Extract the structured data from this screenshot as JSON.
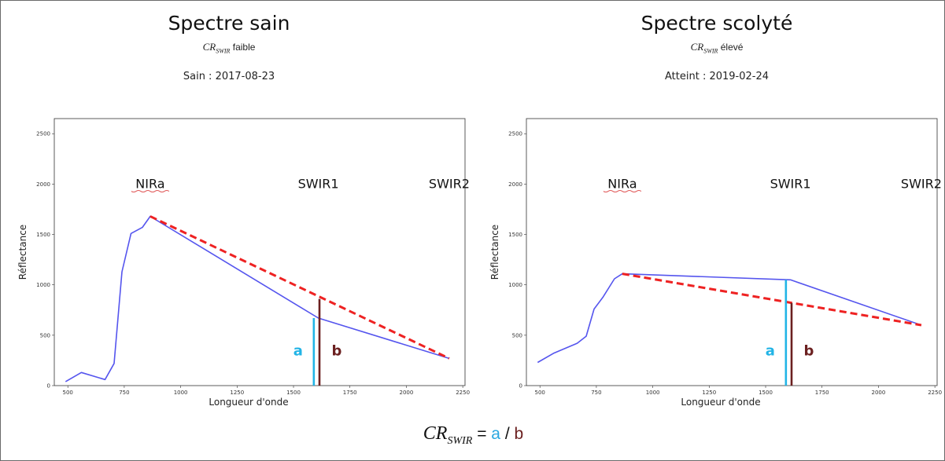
{
  "colors": {
    "spectrum": "#5555ee",
    "hull": "#ee2222",
    "segment_a": "#22b4e6",
    "segment_b": "#6b2020",
    "axis": "#333333",
    "band_underline": "#e05858"
  },
  "formula": {
    "cr_main": "CR",
    "cr_sub": "SWIR",
    "rest": " = ",
    "a": "a",
    "slash": " / ",
    "b": "b"
  },
  "chart_data": [
    {
      "type": "line",
      "heading": "Spectre sain",
      "cr_main": "CR",
      "cr_sub": "SWIR",
      "cr_word": " faible",
      "title": "Sain : 2017-08-23",
      "xlabel": "Longueur d'onde",
      "ylabel": "Réflectance",
      "xlim": [
        440,
        2260
      ],
      "ylim": [
        0,
        2650
      ],
      "xticks": [
        500,
        750,
        1000,
        1250,
        1500,
        1750,
        2000,
        2250
      ],
      "yticks": [
        0,
        500,
        1000,
        1500,
        2000,
        2500
      ],
      "series": [
        {
          "x": [
            490,
            560,
            665,
            705,
            740,
            780,
            830,
            865,
            1610,
            2190
          ],
          "y": [
            40,
            130,
            60,
            220,
            1130,
            1510,
            1570,
            1680,
            670,
            270
          ]
        },
        {
          "x": [
            865,
            2190
          ],
          "y": [
            1680,
            270
          ]
        }
      ],
      "bands": [
        {
          "label": "NIRa",
          "x": 865,
          "y": 1960,
          "underline": true
        },
        {
          "label": "SWIR1",
          "x": 1610,
          "y": 1960,
          "underline": false
        },
        {
          "label": "SWIR2",
          "x": 2190,
          "y": 1960,
          "underline": false
        }
      ],
      "segments": {
        "a": {
          "label": "a",
          "x": 1590,
          "y0": 0,
          "y1": 670
        },
        "b": {
          "label": "b",
          "x": 1615,
          "y0": 0,
          "y1": 860
        }
      }
    },
    {
      "type": "line",
      "heading": "Spectre scolyté",
      "cr_main": "CR",
      "cr_sub": "SWIR",
      "cr_word": " élevé",
      "title": "Atteint : 2019-02-24",
      "xlabel": "Longueur d'onde",
      "ylabel": "Réflectance",
      "xlim": [
        440,
        2260
      ],
      "ylim": [
        0,
        2650
      ],
      "xticks": [
        500,
        750,
        1000,
        1250,
        1500,
        1750,
        2000,
        2250
      ],
      "yticks": [
        0,
        500,
        1000,
        1500,
        2000,
        2500
      ],
      "series": [
        {
          "x": [
            490,
            560,
            665,
            705,
            740,
            780,
            830,
            865,
            1610,
            2190
          ],
          "y": [
            230,
            320,
            420,
            490,
            760,
            880,
            1060,
            1110,
            1050,
            600
          ]
        },
        {
          "x": [
            865,
            2190
          ],
          "y": [
            1110,
            600
          ]
        }
      ],
      "bands": [
        {
          "label": "NIRa",
          "x": 865,
          "y": 1960,
          "underline": true
        },
        {
          "label": "SWIR1",
          "x": 1610,
          "y": 1960,
          "underline": false
        },
        {
          "label": "SWIR2",
          "x": 2190,
          "y": 1960,
          "underline": false
        }
      ],
      "segments": {
        "a": {
          "label": "a",
          "x": 1590,
          "y0": 0,
          "y1": 1050
        },
        "b": {
          "label": "b",
          "x": 1615,
          "y0": 0,
          "y1": 820
        }
      }
    }
  ]
}
